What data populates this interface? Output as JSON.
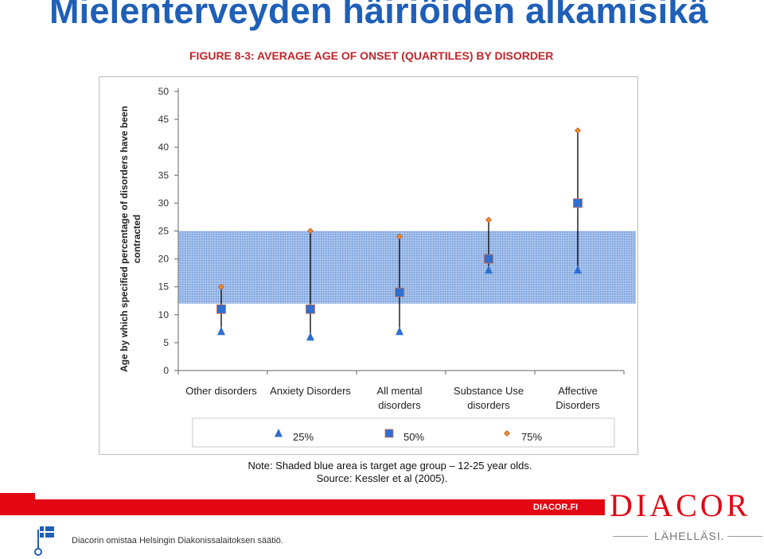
{
  "slide": {
    "title": "Mielenterveyden häiriöiden alkamisikä",
    "figure_title": "FIGURE 8-3: AVERAGE AGE OF ONSET (QUARTILES) BY DISORDER",
    "note": "Note: Shaded blue area is target age group – 12-25 year olds.",
    "source": "Source: Kessler et al (2005)."
  },
  "footer": {
    "url": "DIACOR.FI",
    "owner_text": "Diacorin omistaa Helsingin Diakonissalaitoksen säätiö.",
    "brand": "DIACOR",
    "tagline": "LÄHELLÄSI."
  },
  "colors": {
    "title": "#1f5fb7",
    "figure_title": "#c2252a",
    "footer_red": "#e30613",
    "q25": "#2e6fd1",
    "q50": "#2e6fd1",
    "q75": "#e9902b",
    "shade": "#5b8fd6"
  },
  "chart_data": {
    "type": "scatter",
    "title": "",
    "xlabel": "",
    "ylabel": "Age by which specified percentage of disorders have been contracted",
    "ylim": [
      0,
      50
    ],
    "yticks": [
      0,
      5,
      10,
      15,
      20,
      25,
      30,
      35,
      40,
      45,
      50
    ],
    "grid": false,
    "shaded_band": [
      12,
      25
    ],
    "categories": [
      [
        "Other disorders"
      ],
      [
        "Anxiety Disorders"
      ],
      [
        "All mental",
        "disorders"
      ],
      [
        "Substance Use",
        "disorders"
      ],
      [
        "Affective",
        "Disorders"
      ]
    ],
    "series": [
      {
        "name": "25%",
        "marker": "triangle",
        "values": [
          7,
          6,
          7,
          18,
          18
        ]
      },
      {
        "name": "50%",
        "marker": "square",
        "values": [
          11,
          11,
          14,
          20,
          30
        ]
      },
      {
        "name": "75%",
        "marker": "diamond",
        "values": [
          15,
          25,
          24,
          27,
          43
        ]
      }
    ],
    "legend_position": "bottom"
  }
}
